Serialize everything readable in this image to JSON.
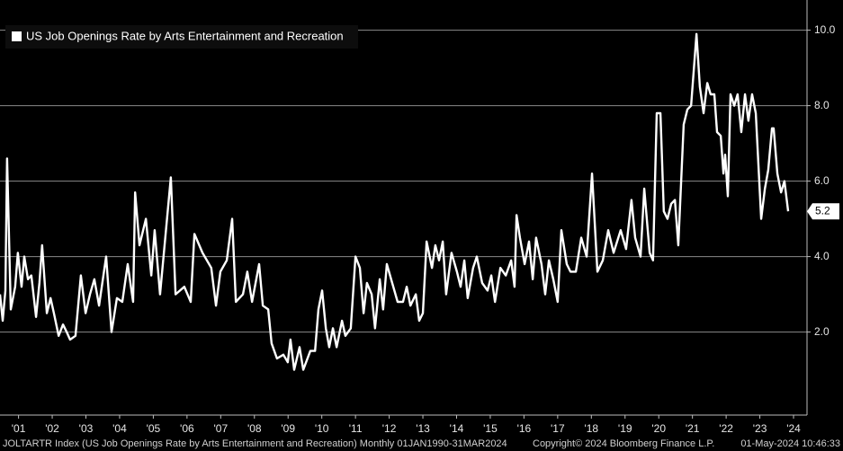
{
  "chart_data": {
    "type": "line",
    "series": [
      {
        "name": "US Job Openings Rate by Arts Entertainment and Recreation",
        "color": "#ffffff",
        "x": [
          2000.95,
          2001.03,
          2001.11,
          2001.16,
          2001.27,
          2001.4,
          2001.48,
          2001.59,
          2001.67,
          2001.78,
          2001.88,
          2002.02,
          2002.12,
          2002.2,
          2002.34,
          2002.45,
          2002.55,
          2002.69,
          2002.82,
          2002.93,
          2003.03,
          2003.19,
          2003.35,
          2003.49,
          2003.62,
          2003.75,
          2003.89,
          2004.1,
          2004.26,
          2004.42,
          2004.58,
          2004.74,
          2004.9,
          2004.96,
          2005.09,
          2005.28,
          2005.44,
          2005.54,
          2005.7,
          2006.02,
          2006.16,
          2006.42,
          2006.61,
          2006.72,
          2006.96,
          2007.22,
          2007.36,
          2007.49,
          2007.68,
          2007.84,
          2007.95,
          2008.16,
          2008.29,
          2008.43,
          2008.64,
          2008.75,
          2008.91,
          2009.01,
          2009.17,
          2009.36,
          2009.49,
          2009.57,
          2009.68,
          2009.84,
          2009.95,
          2010.16,
          2010.3,
          2010.4,
          2010.51,
          2010.62,
          2010.72,
          2010.83,
          2010.94,
          2011.1,
          2011.2,
          2011.36,
          2011.5,
          2011.63,
          2011.74,
          2011.84,
          2011.98,
          2012.08,
          2012.22,
          2012.32,
          2012.43,
          2012.59,
          2012.75,
          2012.91,
          2013.02,
          2013.13,
          2013.29,
          2013.39,
          2013.5,
          2013.61,
          2013.77,
          2013.87,
          2013.98,
          2014.09,
          2014.19,
          2014.35,
          2014.51,
          2014.62,
          2014.73,
          2014.83,
          2014.99,
          2015.1,
          2015.26,
          2015.42,
          2015.53,
          2015.64,
          2015.8,
          2015.96,
          2016.12,
          2016.22,
          2016.28,
          2016.38,
          2016.52,
          2016.65,
          2016.76,
          2016.86,
          2017.02,
          2017.13,
          2017.24,
          2017.37,
          2017.5,
          2017.61,
          2017.77,
          2017.88,
          2018.04,
          2018.2,
          2018.36,
          2018.52,
          2018.68,
          2018.84,
          2019.0,
          2019.16,
          2019.37,
          2019.53,
          2019.69,
          2019.8,
          2019.96,
          2020.07,
          2020.23,
          2020.33,
          2020.44,
          2020.55,
          2020.65,
          2020.76,
          2020.87,
          2020.98,
          2021.08,
          2021.24,
          2021.35,
          2021.46,
          2021.62,
          2021.72,
          2021.83,
          2021.94,
          2022.04,
          2022.15,
          2022.23,
          2022.34,
          2022.42,
          2022.47,
          2022.55,
          2022.63,
          2022.74,
          2022.84,
          2022.95,
          2023.06,
          2023.16,
          2023.27,
          2023.38,
          2023.54,
          2023.65,
          2023.75,
          2023.86,
          2023.91,
          2024.02,
          2024.13,
          2024.23,
          2024.34
        ],
        "values": [
          3.0,
          2.3,
          3.1,
          6.6,
          2.6,
          3.2,
          4.1,
          3.2,
          4.0,
          3.4,
          3.5,
          2.4,
          3.3,
          4.3,
          2.5,
          2.9,
          2.5,
          1.9,
          2.2,
          2.0,
          1.8,
          1.9,
          3.5,
          2.5,
          3.0,
          3.4,
          2.7,
          4.0,
          2.0,
          2.9,
          2.8,
          3.8,
          2.8,
          5.7,
          4.3,
          5.0,
          3.5,
          4.7,
          3.0,
          6.1,
          3.0,
          3.2,
          2.8,
          4.6,
          4.1,
          3.7,
          2.7,
          3.6,
          3.9,
          5.0,
          2.8,
          3.0,
          3.6,
          2.8,
          3.8,
          2.7,
          2.6,
          1.7,
          1.3,
          1.4,
          1.2,
          1.8,
          1.0,
          1.6,
          1.0,
          1.5,
          1.5,
          2.6,
          3.1,
          2.1,
          1.6,
          2.1,
          1.6,
          2.3,
          1.9,
          2.1,
          4.0,
          3.7,
          2.5,
          3.3,
          3.0,
          2.1,
          3.4,
          2.6,
          3.8,
          3.3,
          2.8,
          2.8,
          3.2,
          2.7,
          3.0,
          2.3,
          2.5,
          4.4,
          3.7,
          4.3,
          3.9,
          4.4,
          3.0,
          4.1,
          3.6,
          3.2,
          3.9,
          2.9,
          3.7,
          4.0,
          3.3,
          3.1,
          3.5,
          2.8,
          3.7,
          3.5,
          3.9,
          3.2,
          5.1,
          4.5,
          3.8,
          4.4,
          3.4,
          4.5,
          3.8,
          3.0,
          3.9,
          3.4,
          2.8,
          4.7,
          3.8,
          3.6,
          3.6,
          4.5,
          4.0,
          6.2,
          3.6,
          3.9,
          4.7,
          4.1,
          4.7,
          4.2,
          5.5,
          4.5,
          4.0,
          5.8,
          4.1,
          3.9,
          7.8,
          7.8,
          5.2,
          5.0,
          5.4,
          5.5,
          4.3,
          7.5,
          7.9,
          8.0,
          9.9,
          8.5,
          7.8,
          8.6,
          8.3,
          8.3,
          7.3,
          7.2,
          6.2,
          6.7,
          5.6,
          8.3,
          8.0,
          8.3,
          7.3,
          8.3,
          7.6,
          8.3,
          7.8,
          5.0,
          5.8,
          6.3,
          7.4,
          7.4,
          6.2,
          5.7,
          6.0,
          5.2
        ]
      }
    ],
    "xlim": [
      2000.95,
      2024.9
    ],
    "xticks": [
      {
        "value": 2001.5,
        "label": "'01"
      },
      {
        "value": 2002.5,
        "label": "'02"
      },
      {
        "value": 2003.5,
        "label": "'03"
      },
      {
        "value": 2004.5,
        "label": "'04"
      },
      {
        "value": 2005.5,
        "label": "'05"
      },
      {
        "value": 2006.5,
        "label": "'06"
      },
      {
        "value": 2007.5,
        "label": "'07"
      },
      {
        "value": 2008.5,
        "label": "'08"
      },
      {
        "value": 2009.5,
        "label": "'09"
      },
      {
        "value": 2010.5,
        "label": "'10"
      },
      {
        "value": 2011.5,
        "label": "'11"
      },
      {
        "value": 2012.5,
        "label": "'12"
      },
      {
        "value": 2013.5,
        "label": "'13"
      },
      {
        "value": 2014.5,
        "label": "'14"
      },
      {
        "value": 2015.5,
        "label": "'15"
      },
      {
        "value": 2016.5,
        "label": "'16"
      },
      {
        "value": 2017.5,
        "label": "'17"
      },
      {
        "value": 2018.5,
        "label": "'18"
      },
      {
        "value": 2019.5,
        "label": "'19"
      },
      {
        "value": 2020.5,
        "label": "'20"
      },
      {
        "value": 2021.5,
        "label": "'21"
      },
      {
        "value": 2022.5,
        "label": "'22"
      },
      {
        "value": 2023.5,
        "label": "'23"
      },
      {
        "value": 2024.5,
        "label": "'24"
      }
    ],
    "ylim": [
      -0.2,
      10.8
    ],
    "yticks": [
      {
        "value": 2,
        "label": "2.0"
      },
      {
        "value": 4,
        "label": "4.0"
      },
      {
        "value": 6,
        "label": "6.0"
      },
      {
        "value": 8,
        "label": "8.0"
      },
      {
        "value": 10,
        "label": "10.0"
      }
    ],
    "grid": true,
    "legend": "upper left",
    "footer": {
      "source": "JOLTARTR Index (US Job Openings Rate by Arts Entertainment and Recreation)  Monthly 01JAN1990-31MAR2024",
      "copyright": "Copyright© 2024 Bloomberg Finance L.P.",
      "timestamp": "01-May-2024 10:46:33"
    }
  }
}
